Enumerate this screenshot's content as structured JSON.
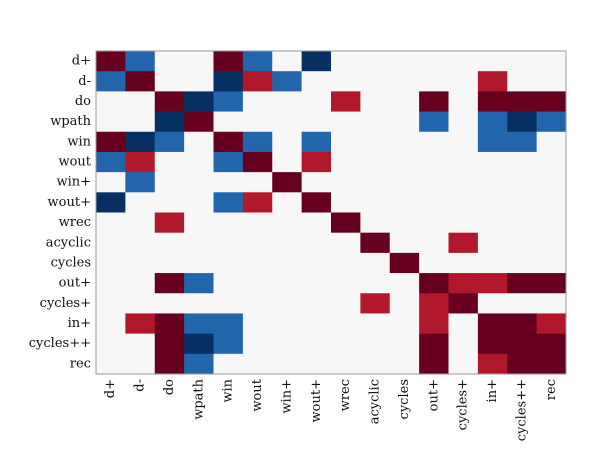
{
  "chart_data": {
    "type": "heatmap",
    "title": "",
    "xlabel": "",
    "ylabel": "",
    "rows": [
      "d+",
      "d-",
      "do",
      "wpath",
      "win",
      "wout",
      "win+",
      "wout+",
      "wrec",
      "acyclic",
      "cycles",
      "out+",
      "cycles+",
      "in+",
      "cycles++",
      "rec"
    ],
    "columns": [
      "d+",
      "d-",
      "do",
      "wpath",
      "win",
      "wout",
      "win+",
      "wout+",
      "wrec",
      "acyclic",
      "cycles",
      "out+",
      "cycles+",
      "in+",
      "cycles++",
      "rec"
    ],
    "value_range": [
      -1,
      1
    ],
    "grid": false,
    "legend": "none",
    "colors": {
      "strong_positive": "#67001f",
      "positive": "#b2182b",
      "neutral": "#f7f7f7",
      "negative": "#2166ac",
      "strong_negative": "#053061"
    },
    "values": [
      [
        1,
        -0.6,
        0,
        0,
        1,
        -0.6,
        0,
        -1,
        0,
        0,
        0,
        0,
        0,
        0,
        0,
        0
      ],
      [
        -0.6,
        1,
        0,
        0,
        -1,
        0.6,
        -0.6,
        0,
        0,
        0,
        0,
        0,
        0,
        0.6,
        0,
        0
      ],
      [
        0,
        0,
        1,
        -1,
        -0.6,
        0,
        0,
        0,
        0.6,
        0,
        0,
        1,
        0,
        1,
        1,
        1
      ],
      [
        0,
        0,
        -1,
        1,
        0,
        0,
        0,
        0,
        0,
        0,
        0,
        -0.6,
        0,
        -0.6,
        -1,
        -0.6
      ],
      [
        1,
        -1,
        -0.6,
        0,
        1,
        -0.6,
        0,
        -0.6,
        0,
        0,
        0,
        0,
        0,
        -0.6,
        -0.6,
        0
      ],
      [
        -0.6,
        0.6,
        0,
        0,
        -0.6,
        1,
        0,
        0.6,
        0,
        0,
        0,
        0,
        0,
        0,
        0,
        0
      ],
      [
        0,
        -0.6,
        0,
        0,
        0,
        0,
        1,
        0,
        0,
        0,
        0,
        0,
        0,
        0,
        0,
        0
      ],
      [
        -1,
        0,
        0,
        0,
        -0.6,
        0.6,
        0,
        1,
        0,
        0,
        0,
        0,
        0,
        0,
        0,
        0
      ],
      [
        0,
        0,
        0.6,
        0,
        0,
        0,
        0,
        0,
        1,
        0,
        0,
        0,
        0,
        0,
        0,
        0
      ],
      [
        0,
        0,
        0,
        0,
        0,
        0,
        0,
        0,
        0,
        1,
        0,
        0,
        0.6,
        0,
        0,
        0
      ],
      [
        0,
        0,
        0,
        0,
        0,
        0,
        0,
        0,
        0,
        0,
        1,
        0,
        0,
        0,
        0,
        0
      ],
      [
        0,
        0,
        1,
        -0.6,
        0,
        0,
        0,
        0,
        0,
        0,
        0,
        1,
        0.6,
        0.6,
        1,
        1
      ],
      [
        0,
        0,
        0,
        0,
        0,
        0,
        0,
        0,
        0,
        0.6,
        0,
        0.6,
        1,
        0,
        0,
        0
      ],
      [
        0,
        0.6,
        1,
        -0.6,
        -0.6,
        0,
        0,
        0,
        0,
        0,
        0,
        0.6,
        0,
        1,
        1,
        0.6
      ],
      [
        0,
        0,
        1,
        -1,
        -0.6,
        0,
        0,
        0,
        0,
        0,
        0,
        1,
        0,
        1,
        1,
        1
      ],
      [
        0,
        0,
        1,
        -0.6,
        0,
        0,
        0,
        0,
        0,
        0,
        0,
        1,
        0,
        0.6,
        1,
        1
      ]
    ]
  }
}
